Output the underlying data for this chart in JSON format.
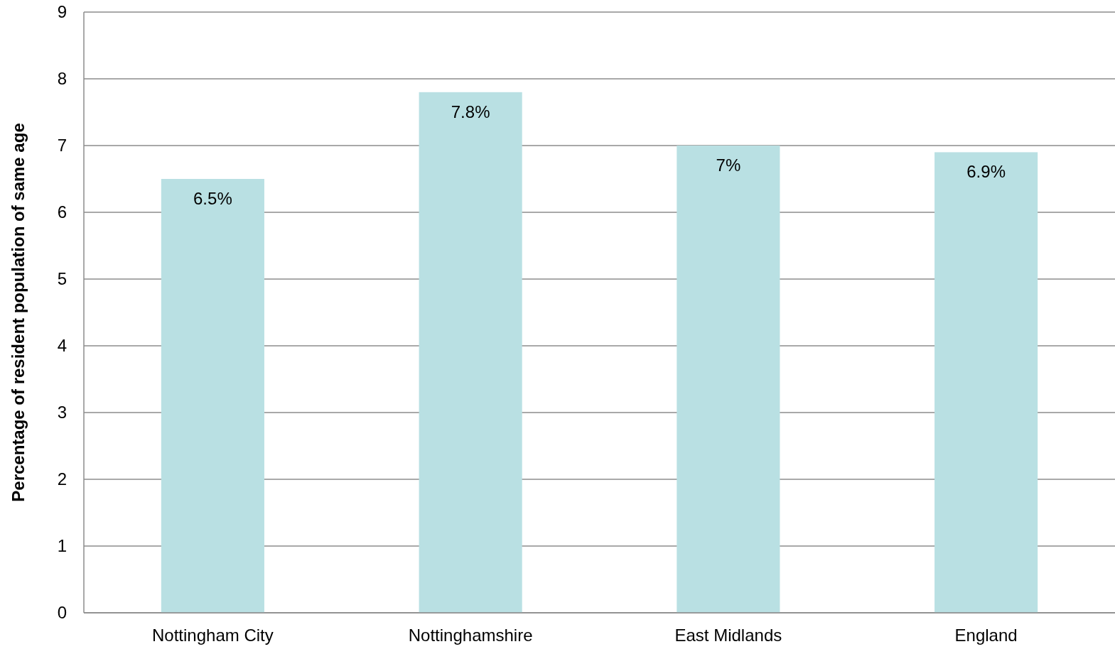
{
  "chart_data": {
    "type": "bar",
    "ylabel": "Percentage of resident population of same age",
    "categories": [
      "Nottingham City",
      "Nottinghamshire",
      "East Midlands",
      "England"
    ],
    "values": [
      6.5,
      7.8,
      7,
      6.9
    ],
    "value_labels": [
      "6.5%",
      "7.8%",
      "7%",
      "6.9%"
    ],
    "color": "#b9e0e3",
    "ylim": [
      0,
      9
    ],
    "yticks": [
      0,
      1,
      2,
      3,
      4,
      5,
      6,
      7,
      8,
      9
    ],
    "grid": "y"
  }
}
